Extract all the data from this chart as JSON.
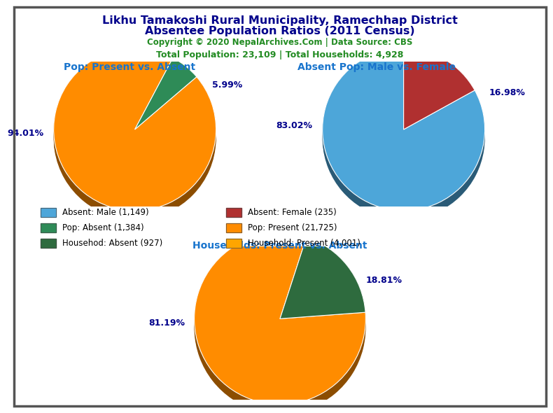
{
  "title_line1": "Likhu Tamakoshi Rural Municipality, Ramechhap District",
  "title_line2": "Absentee Population Ratios (2011 Census)",
  "copyright": "Copyright © 2020 NepalArchives.Com | Data Source: CBS",
  "stats": "Total Population: 23,109 | Total Households: 4,928",
  "pie1_title": "Pop: Present vs. Absent",
  "pie1_values": [
    94.01,
    5.99
  ],
  "pie1_colors": [
    "#FF8C00",
    "#2E8B57"
  ],
  "pie2_title": "Absent Pop: Male vs. Female",
  "pie2_values": [
    83.02,
    16.98
  ],
  "pie2_colors": [
    "#4DA6D9",
    "#B03030"
  ],
  "pie3_title": "Households: Present vs. Absent",
  "pie3_values": [
    81.19,
    18.81
  ],
  "pie3_colors": [
    "#FF8C00",
    "#2E6B3E"
  ],
  "legend_items": [
    {
      "label": "Absent: Male (1,149)",
      "color": "#4DA6D9"
    },
    {
      "label": "Absent: Female (235)",
      "color": "#B03030"
    },
    {
      "label": "Pop: Absent (1,384)",
      "color": "#2E8B57"
    },
    {
      "label": "Pop: Present (21,725)",
      "color": "#FF8C00"
    },
    {
      "label": "Househod: Absent (927)",
      "color": "#2E6B3E"
    },
    {
      "label": "Household: Present (4,001)",
      "color": "#FFA500"
    }
  ],
  "title_color": "#00008B",
  "copyright_color": "#228B22",
  "stats_color": "#228B22",
  "subtitle_color": "#1874CD",
  "pct_color": "#00008B",
  "bg_color": "#FFFFFF",
  "border_color": "#555555",
  "pie1_startangle": 62,
  "pie2_startangle": 90,
  "pie3_startangle": 72
}
